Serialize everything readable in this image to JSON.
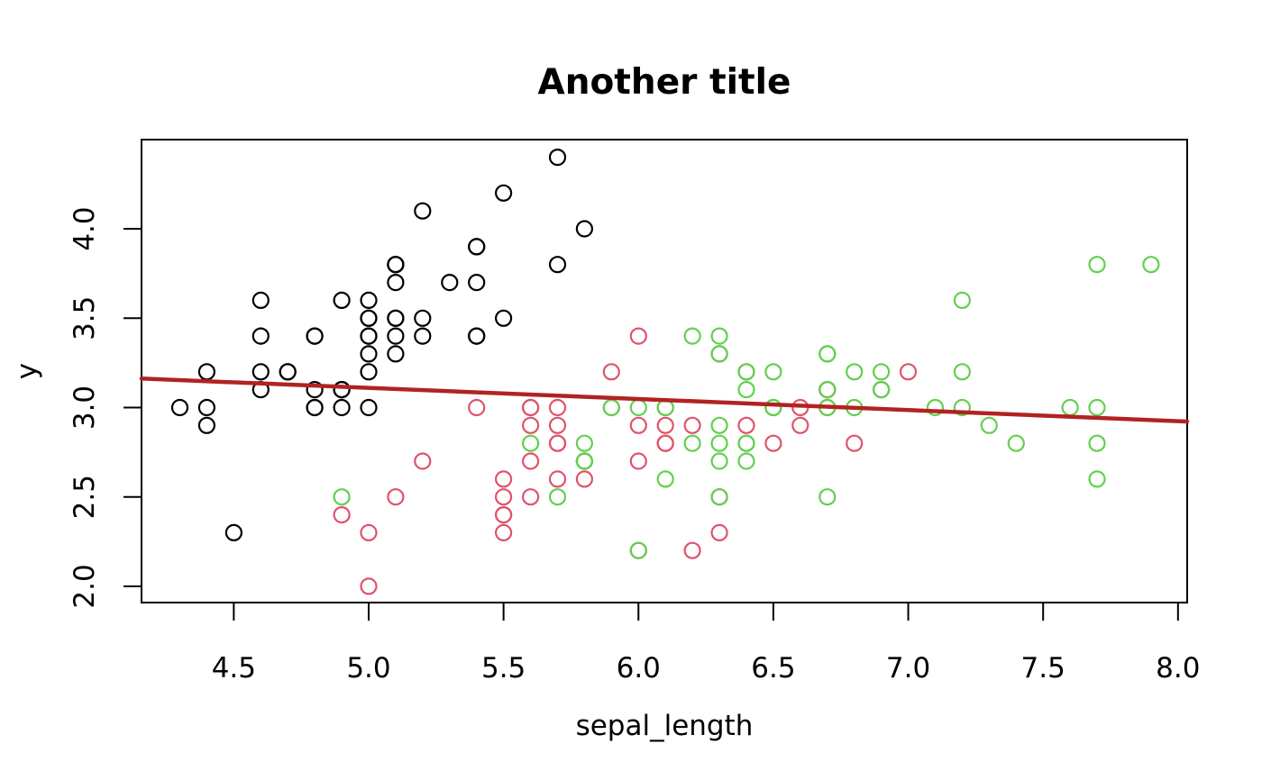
{
  "title": "Another title",
  "chart_data": {
    "type": "scatter",
    "title": "Another title",
    "xlabel": "sepal_length",
    "ylabel": "y",
    "xlim": [
      4.158,
      8.034
    ],
    "ylim": [
      1.909,
      4.499
    ],
    "x_ticks": [
      4.5,
      5.0,
      5.5,
      6.0,
      6.5,
      7.0,
      7.5,
      8.0
    ],
    "y_ticks": [
      2.0,
      2.5,
      3.0,
      3.5,
      4.0
    ],
    "grid": false,
    "legend_position": "none",
    "marker": "open-circle",
    "axis_color": "#000000",
    "background": "#ffffff",
    "series": [
      {
        "name": "black",
        "color": "#000000",
        "points": [
          [
            5.1,
            3.5
          ],
          [
            4.9,
            3.0
          ],
          [
            4.7,
            3.2
          ],
          [
            4.6,
            3.1
          ],
          [
            5.0,
            3.6
          ],
          [
            5.4,
            3.9
          ],
          [
            4.6,
            3.4
          ],
          [
            5.0,
            3.4
          ],
          [
            4.4,
            2.9
          ],
          [
            4.9,
            3.1
          ],
          [
            5.4,
            3.7
          ],
          [
            4.8,
            3.4
          ],
          [
            4.8,
            3.0
          ],
          [
            4.3,
            3.0
          ],
          [
            5.8,
            4.0
          ],
          [
            5.7,
            4.4
          ],
          [
            5.4,
            3.9
          ],
          [
            5.1,
            3.5
          ],
          [
            5.7,
            3.8
          ],
          [
            5.1,
            3.8
          ],
          [
            5.4,
            3.4
          ],
          [
            5.1,
            3.7
          ],
          [
            4.6,
            3.6
          ],
          [
            5.1,
            3.3
          ],
          [
            4.8,
            3.4
          ],
          [
            5.0,
            3.0
          ],
          [
            5.0,
            3.4
          ],
          [
            5.2,
            3.5
          ],
          [
            5.2,
            3.4
          ],
          [
            4.7,
            3.2
          ],
          [
            4.8,
            3.1
          ],
          [
            5.4,
            3.4
          ],
          [
            5.2,
            4.1
          ],
          [
            5.5,
            4.2
          ],
          [
            4.9,
            3.1
          ],
          [
            5.0,
            3.2
          ],
          [
            5.5,
            3.5
          ],
          [
            4.9,
            3.6
          ],
          [
            4.4,
            3.0
          ],
          [
            5.1,
            3.4
          ],
          [
            5.0,
            3.5
          ],
          [
            4.5,
            2.3
          ],
          [
            4.4,
            3.2
          ],
          [
            5.0,
            3.5
          ],
          [
            5.1,
            3.8
          ],
          [
            4.8,
            3.0
          ],
          [
            5.1,
            3.8
          ],
          [
            4.6,
            3.2
          ],
          [
            5.3,
            3.7
          ],
          [
            5.0,
            3.3
          ]
        ]
      },
      {
        "name": "red",
        "color": "#DF536B",
        "points": [
          [
            7.0,
            3.2
          ],
          [
            6.4,
            3.2
          ],
          [
            6.9,
            3.1
          ],
          [
            5.5,
            2.3
          ],
          [
            6.5,
            2.8
          ],
          [
            5.7,
            2.8
          ],
          [
            6.3,
            3.3
          ],
          [
            4.9,
            2.4
          ],
          [
            6.6,
            2.9
          ],
          [
            5.2,
            2.7
          ],
          [
            5.0,
            2.0
          ],
          [
            5.9,
            3.0
          ],
          [
            6.0,
            2.2
          ],
          [
            6.1,
            2.9
          ],
          [
            5.6,
            2.9
          ],
          [
            6.7,
            3.1
          ],
          [
            5.6,
            3.0
          ],
          [
            5.8,
            2.7
          ],
          [
            6.2,
            2.2
          ],
          [
            5.6,
            2.5
          ],
          [
            5.9,
            3.2
          ],
          [
            6.1,
            2.8
          ],
          [
            6.3,
            2.5
          ],
          [
            6.1,
            2.8
          ],
          [
            6.4,
            2.9
          ],
          [
            6.6,
            3.0
          ],
          [
            6.8,
            2.8
          ],
          [
            6.7,
            3.0
          ],
          [
            6.0,
            2.9
          ],
          [
            5.7,
            2.6
          ],
          [
            5.5,
            2.4
          ],
          [
            5.5,
            2.4
          ],
          [
            5.8,
            2.7
          ],
          [
            6.0,
            2.7
          ],
          [
            5.4,
            3.0
          ],
          [
            6.0,
            3.4
          ],
          [
            6.7,
            3.1
          ],
          [
            6.3,
            2.3
          ],
          [
            5.6,
            3.0
          ],
          [
            5.5,
            2.5
          ],
          [
            5.5,
            2.6
          ],
          [
            6.1,
            3.0
          ],
          [
            5.8,
            2.6
          ],
          [
            5.0,
            2.3
          ],
          [
            5.6,
            2.7
          ],
          [
            5.7,
            3.0
          ],
          [
            5.7,
            2.9
          ],
          [
            6.2,
            2.9
          ],
          [
            5.1,
            2.5
          ],
          [
            5.7,
            2.8
          ]
        ]
      },
      {
        "name": "green",
        "color": "#61D04F",
        "points": [
          [
            6.3,
            3.3
          ],
          [
            5.8,
            2.7
          ],
          [
            7.1,
            3.0
          ],
          [
            6.3,
            2.9
          ],
          [
            6.5,
            3.0
          ],
          [
            7.6,
            3.0
          ],
          [
            4.9,
            2.5
          ],
          [
            7.3,
            2.9
          ],
          [
            6.7,
            2.5
          ],
          [
            7.2,
            3.6
          ],
          [
            6.5,
            3.2
          ],
          [
            6.4,
            2.7
          ],
          [
            6.8,
            3.0
          ],
          [
            5.7,
            2.5
          ],
          [
            5.8,
            2.8
          ],
          [
            6.4,
            3.2
          ],
          [
            6.5,
            3.0
          ],
          [
            7.7,
            3.8
          ],
          [
            7.7,
            2.6
          ],
          [
            6.0,
            2.2
          ],
          [
            6.9,
            3.2
          ],
          [
            5.6,
            2.8
          ],
          [
            7.7,
            2.8
          ],
          [
            6.3,
            2.7
          ],
          [
            6.7,
            3.3
          ],
          [
            7.2,
            3.2
          ],
          [
            6.2,
            2.8
          ],
          [
            6.1,
            3.0
          ],
          [
            6.4,
            2.8
          ],
          [
            7.2,
            3.0
          ],
          [
            7.4,
            2.8
          ],
          [
            7.9,
            3.8
          ],
          [
            6.4,
            2.8
          ],
          [
            6.3,
            2.8
          ],
          [
            6.1,
            2.6
          ],
          [
            7.7,
            3.0
          ],
          [
            6.3,
            3.4
          ],
          [
            6.4,
            3.1
          ],
          [
            6.0,
            3.0
          ],
          [
            6.9,
            3.1
          ],
          [
            6.7,
            3.1
          ],
          [
            6.9,
            3.1
          ],
          [
            5.8,
            2.7
          ],
          [
            6.8,
            3.2
          ],
          [
            6.7,
            3.3
          ],
          [
            6.7,
            3.0
          ],
          [
            6.3,
            2.5
          ],
          [
            6.5,
            3.0
          ],
          [
            6.2,
            3.4
          ],
          [
            5.9,
            3.0
          ]
        ]
      }
    ],
    "trend_line": {
      "x": [
        4.158,
        8.034
      ],
      "y": [
        3.162,
        2.922
      ],
      "color": "#B22222"
    }
  }
}
